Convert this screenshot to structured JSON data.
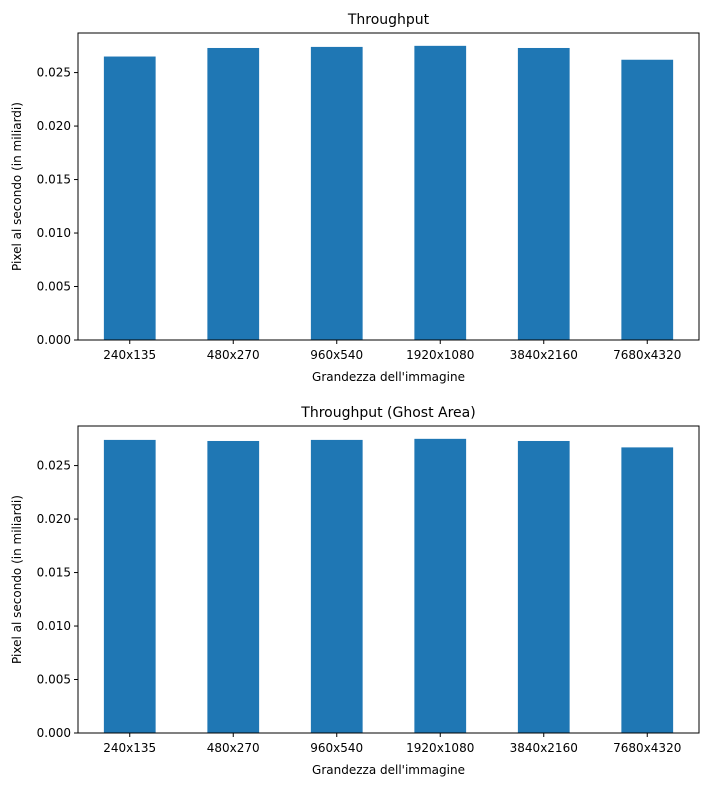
{
  "chart_data": [
    {
      "type": "bar",
      "title": "Throughput",
      "xlabel": "Grandezza dell'immagine",
      "ylabel": "Pixel al secondo (in miliardi)",
      "categories": [
        "240x135",
        "480x270",
        "960x540",
        "1920x1080",
        "3840x2160",
        "7680x4320"
      ],
      "values": [
        0.0265,
        0.0273,
        0.0274,
        0.0275,
        0.0273,
        0.0262
      ],
      "ylim": [
        0,
        0.0287
      ],
      "yticks": [
        0.0,
        0.005,
        0.01,
        0.015,
        0.02,
        0.025
      ],
      "ytick_labels": [
        "0.000",
        "0.005",
        "0.010",
        "0.015",
        "0.020",
        "0.025"
      ],
      "grid": false,
      "legend": "none",
      "bar_color": "#1f77b4"
    },
    {
      "type": "bar",
      "title": "Throughput (Ghost Area)",
      "xlabel": "Grandezza dell'immagine",
      "ylabel": "Pixel al secondo (in miliardi)",
      "categories": [
        "240x135",
        "480x270",
        "960x540",
        "1920x1080",
        "3840x2160",
        "7680x4320"
      ],
      "values": [
        0.0274,
        0.0273,
        0.0274,
        0.0275,
        0.0273,
        0.0267
      ],
      "ylim": [
        0,
        0.0287
      ],
      "yticks": [
        0.0,
        0.005,
        0.01,
        0.015,
        0.02,
        0.025
      ],
      "ytick_labels": [
        "0.000",
        "0.005",
        "0.010",
        "0.015",
        "0.020",
        "0.025"
      ],
      "grid": false,
      "legend": "none",
      "bar_color": "#1f77b4"
    }
  ]
}
